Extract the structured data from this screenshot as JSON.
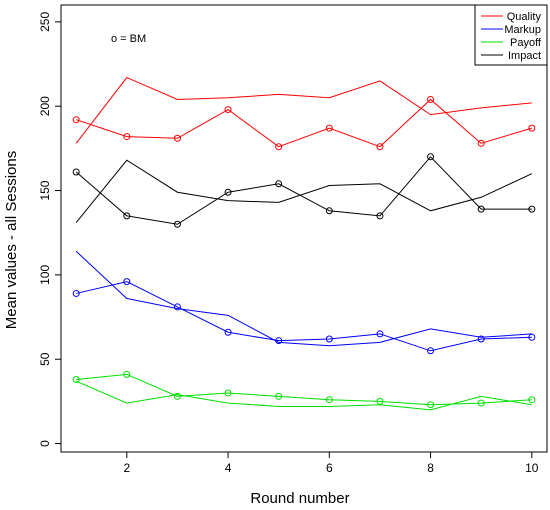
{
  "chart_data": {
    "type": "line",
    "xlabel": "Round number",
    "ylabel": "Mean values - all Sessions",
    "xlim": [
      0.7,
      10.3
    ],
    "ylim": [
      -5,
      260
    ],
    "x_ticks": [
      2,
      4,
      6,
      8,
      10
    ],
    "y_ticks": [
      0,
      50,
      100,
      150,
      200,
      250
    ],
    "x": [
      1,
      2,
      3,
      4,
      5,
      6,
      7,
      8,
      9,
      10
    ],
    "annotation": "o = BM",
    "legend_position": "top-right",
    "series": [
      {
        "name": "Quality",
        "color": "#ff0000",
        "line": [
          178,
          217,
          204,
          205,
          207,
          205,
          215,
          195,
          199,
          202
        ],
        "bm": [
          192,
          182,
          181,
          198,
          176,
          187,
          176,
          204,
          178,
          187
        ]
      },
      {
        "name": "Markup",
        "color": "#0000ff",
        "line": [
          114,
          86,
          80,
          76,
          60,
          58,
          60,
          68,
          63,
          65
        ],
        "bm": [
          89,
          96,
          81,
          66,
          61,
          62,
          65,
          55,
          62,
          63
        ]
      },
      {
        "name": "Payoff",
        "color": "#00e000",
        "line": [
          37,
          24,
          29,
          24,
          22,
          22,
          23,
          20,
          28,
          23
        ],
        "bm": [
          38,
          41,
          28,
          30,
          28,
          26,
          25,
          23,
          24,
          26
        ]
      },
      {
        "name": "Impact",
        "color": "#000000",
        "line": [
          131,
          168,
          149,
          144,
          143,
          153,
          154,
          138,
          146,
          160
        ],
        "bm": [
          161,
          135,
          130,
          149,
          154,
          138,
          135,
          170,
          139,
          139
        ]
      }
    ]
  }
}
